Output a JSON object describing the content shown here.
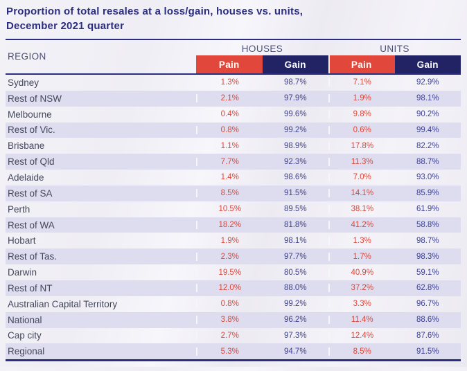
{
  "title": {
    "line1": "Proportion of total resales at a loss/gain, houses vs. units,",
    "line2": "December 2021 quarter"
  },
  "chart_data": {
    "type": "table",
    "title": "Proportion of total resales at a loss/gain, houses vs. units, December 2021 quarter",
    "region_header": "REGION",
    "column_groups": [
      "HOUSES",
      "UNITS"
    ],
    "sub_headers": [
      "Pain",
      "Gain",
      "Pain",
      "Gain"
    ],
    "columns": [
      "REGION",
      "HOUSES Pain",
      "HOUSES Gain",
      "UNITS Pain",
      "UNITS Gain"
    ],
    "rows": [
      {
        "region": "Sydney",
        "houses_pain": "1.3%",
        "houses_gain": "98.7%",
        "units_pain": "7.1%",
        "units_gain": "92.9%"
      },
      {
        "region": "Rest of NSW",
        "houses_pain": "2.1%",
        "houses_gain": "97.9%",
        "units_pain": "1.9%",
        "units_gain": "98.1%"
      },
      {
        "region": "Melbourne",
        "houses_pain": "0.4%",
        "houses_gain": "99.6%",
        "units_pain": "9.8%",
        "units_gain": "90.2%"
      },
      {
        "region": "Rest of Vic.",
        "houses_pain": "0.8%",
        "houses_gain": "99.2%",
        "units_pain": "0.6%",
        "units_gain": "99.4%"
      },
      {
        "region": "Brisbane",
        "houses_pain": "1.1%",
        "houses_gain": "98.9%",
        "units_pain": "17.8%",
        "units_gain": "82.2%"
      },
      {
        "region": "Rest of Qld",
        "houses_pain": "7.7%",
        "houses_gain": "92.3%",
        "units_pain": "11.3%",
        "units_gain": "88.7%"
      },
      {
        "region": "Adelaide",
        "houses_pain": "1.4%",
        "houses_gain": "98.6%",
        "units_pain": "7.0%",
        "units_gain": "93.0%"
      },
      {
        "region": "Rest of SA",
        "houses_pain": "8.5%",
        "houses_gain": "91.5%",
        "units_pain": "14.1%",
        "units_gain": "85.9%"
      },
      {
        "region": "Perth",
        "houses_pain": "10.5%",
        "houses_gain": "89.5%",
        "units_pain": "38.1%",
        "units_gain": "61.9%"
      },
      {
        "region": "Rest of WA",
        "houses_pain": "18.2%",
        "houses_gain": "81.8%",
        "units_pain": "41.2%",
        "units_gain": "58.8%"
      },
      {
        "region": "Hobart",
        "houses_pain": "1.9%",
        "houses_gain": "98.1%",
        "units_pain": "1.3%",
        "units_gain": "98.7%"
      },
      {
        "region": "Rest of Tas.",
        "houses_pain": "2.3%",
        "houses_gain": "97.7%",
        "units_pain": "1.7%",
        "units_gain": "98.3%"
      },
      {
        "region": "Darwin",
        "houses_pain": "19.5%",
        "houses_gain": "80.5%",
        "units_pain": "40.9%",
        "units_gain": "59.1%"
      },
      {
        "region": "Rest of NT",
        "houses_pain": "12.0%",
        "houses_gain": "88.0%",
        "units_pain": "37.2%",
        "units_gain": "62.8%"
      },
      {
        "region": "Australian Capital Territory",
        "houses_pain": "0.8%",
        "houses_gain": "99.2%",
        "units_pain": "3.3%",
        "units_gain": "96.7%"
      },
      {
        "region": "National",
        "houses_pain": "3.8%",
        "houses_gain": "96.2%",
        "units_pain": "11.4%",
        "units_gain": "88.6%"
      },
      {
        "region": "Cap city",
        "houses_pain": "2.7%",
        "houses_gain": "97.3%",
        "units_pain": "12.4%",
        "units_gain": "87.6%"
      },
      {
        "region": "Regional",
        "houses_pain": "5.3%",
        "houses_gain": "94.7%",
        "units_pain": "8.5%",
        "units_gain": "91.5%"
      }
    ],
    "layout": {
      "row_striping": true,
      "pain_color": "#E2473B",
      "gain_color": "#212365"
    }
  },
  "colors": {
    "accent_navy": "#2B2E80",
    "pain_red": "#E2473B",
    "gain_navy": "#212365",
    "stripe_lavender": "#DEDDEF",
    "pain_value_text": "#DC463A",
    "gain_value_text": "#3E4190"
  }
}
